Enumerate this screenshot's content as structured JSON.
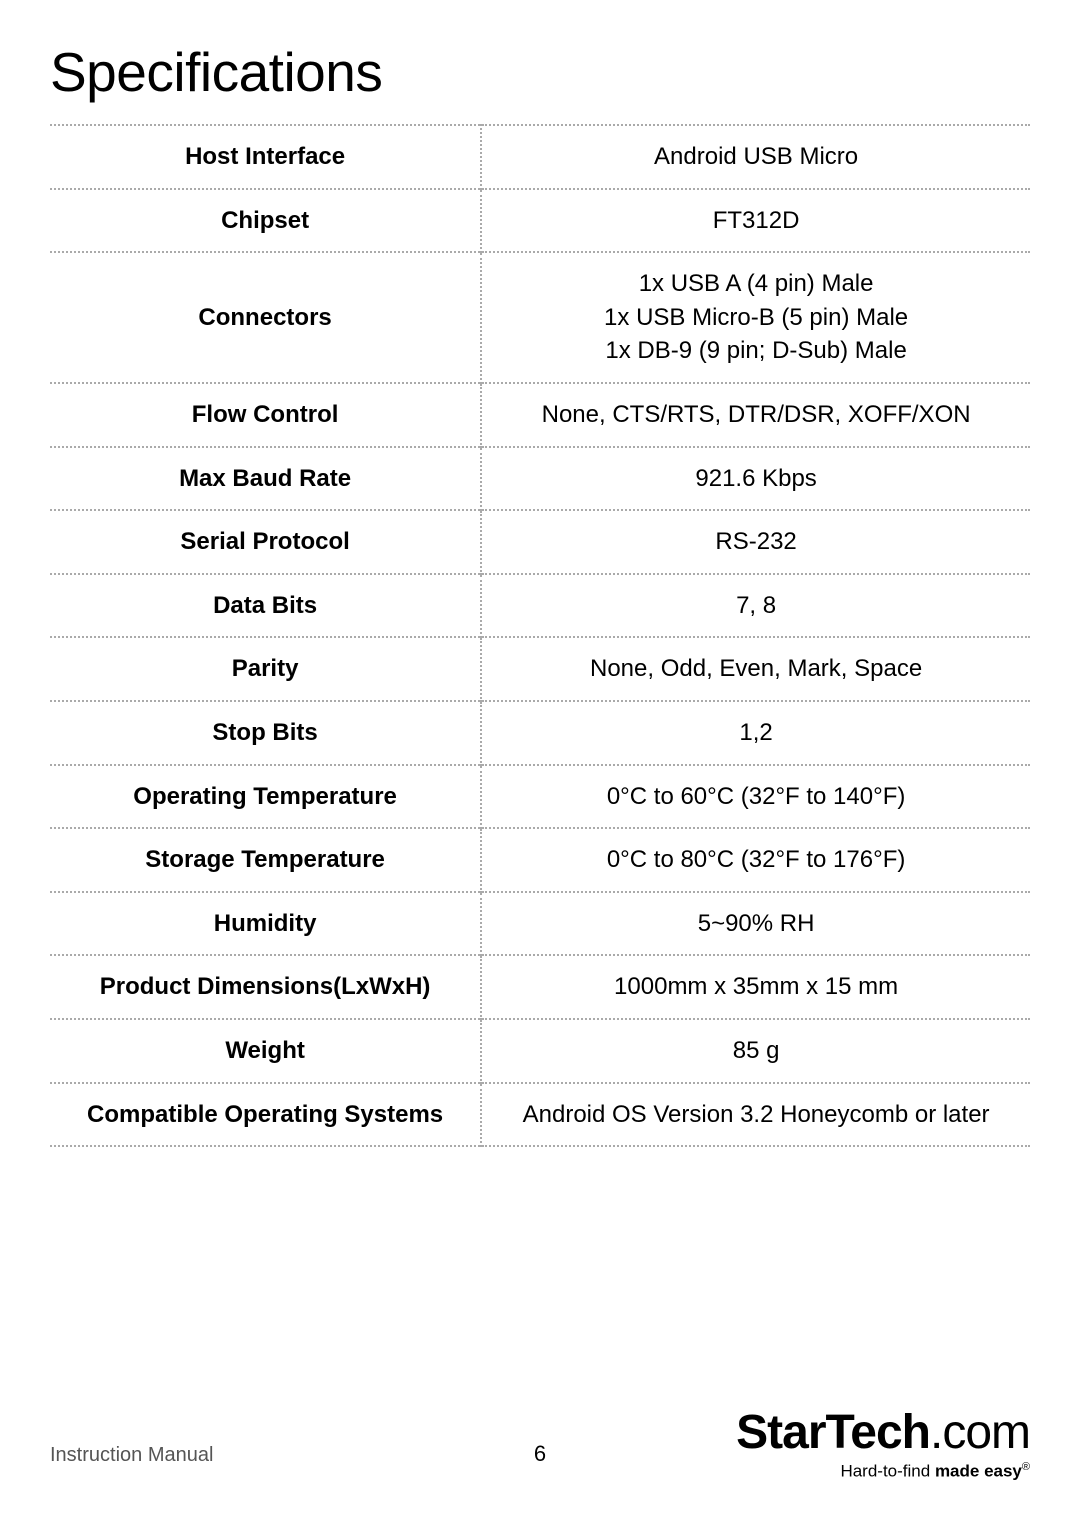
{
  "title": "Specifications",
  "rows": [
    {
      "label": "Host Interface",
      "value": "Android USB Micro"
    },
    {
      "label": "Chipset",
      "value": "FT312D"
    },
    {
      "label": "Connectors",
      "value": "1x USB A (4 pin) Male\n1x USB Micro-B (5 pin) Male\n1x DB-9 (9 pin; D-Sub) Male"
    },
    {
      "label": "Flow Control",
      "value": "None, CTS/RTS, DTR/DSR, XOFF/XON"
    },
    {
      "label": "Max Baud Rate",
      "value": "921.6 Kbps"
    },
    {
      "label": "Serial Protocol",
      "value": "RS-232"
    },
    {
      "label": "Data Bits",
      "value": "7, 8"
    },
    {
      "label": "Parity",
      "value": "None, Odd, Even, Mark, Space"
    },
    {
      "label": "Stop Bits",
      "value": "1,2"
    },
    {
      "label": "Operating Temperature",
      "value": "0°C to 60°C (32°F to 140°F)"
    },
    {
      "label": "Storage Temperature",
      "value": "0°C to 80°C (32°F to 176°F)"
    },
    {
      "label": "Humidity",
      "value": "5~90% RH"
    },
    {
      "label": "Product Dimensions(LxWxH)",
      "value": "1000mm x 35mm x 15 mm"
    },
    {
      "label": "Weight",
      "value": "85 g"
    },
    {
      "label": "Compatible Operating Systems",
      "value": "Android OS Version 3.2 Honeycomb or later"
    }
  ],
  "footer": {
    "left": "Instruction Manual",
    "page_number": "6",
    "brand_main": "StarTech",
    "brand_suffix": ".com",
    "tagline_prefix": "Hard-to-find ",
    "tagline_bold": "made easy",
    "tagline_reg": "®"
  },
  "colors": {
    "text": "#000000",
    "border": "#aaaaaa",
    "footer_text": "#555555",
    "background": "#ffffff"
  }
}
